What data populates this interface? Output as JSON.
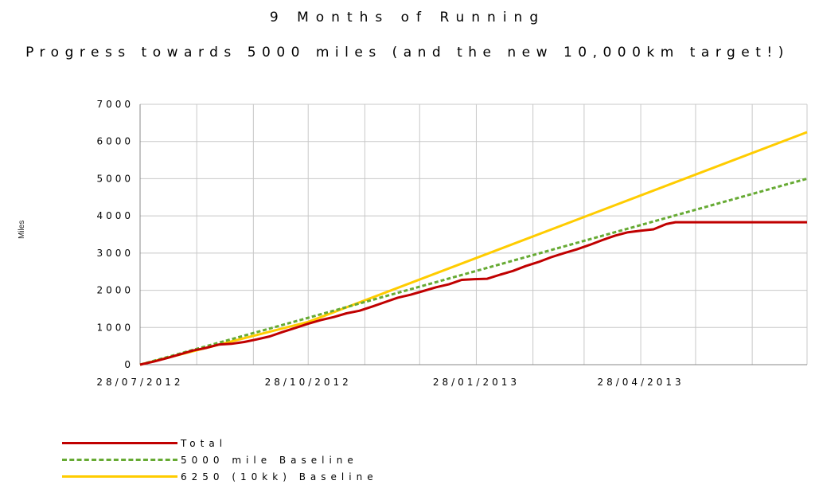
{
  "chart_data": {
    "type": "line",
    "title": "9 Months of Running",
    "subtitle": "Progress towards 5000 miles (and the new 10,000km target!)",
    "ylabel": "Miles",
    "xlabel": "",
    "ylim": [
      0,
      7000
    ],
    "yticks": [
      0,
      1000,
      2000,
      3000,
      4000,
      5000,
      6000,
      7000
    ],
    "xlim": [
      "2012-07-28",
      "2013-07-28"
    ],
    "xticks": [
      "28/07/2012",
      "28/10/2012",
      "28/01/2013",
      "28/04/2013"
    ],
    "grid": true,
    "legend_position": "bottom-left",
    "series": [
      {
        "name": "Total",
        "color": "#c00000",
        "style": "solid",
        "points": [
          [
            "2012-07-28",
            0
          ],
          [
            "2012-08-05",
            90
          ],
          [
            "2012-08-12",
            180
          ],
          [
            "2012-08-19",
            280
          ],
          [
            "2012-08-26",
            380
          ],
          [
            "2012-09-02",
            450
          ],
          [
            "2012-09-09",
            540
          ],
          [
            "2012-09-16",
            560
          ],
          [
            "2012-09-23",
            610
          ],
          [
            "2012-09-30",
            680
          ],
          [
            "2012-10-07",
            760
          ],
          [
            "2012-10-14",
            880
          ],
          [
            "2012-10-21",
            990
          ],
          [
            "2012-10-28",
            1100
          ],
          [
            "2012-11-04",
            1200
          ],
          [
            "2012-11-11",
            1280
          ],
          [
            "2012-11-18",
            1380
          ],
          [
            "2012-11-25",
            1450
          ],
          [
            "2012-12-02",
            1560
          ],
          [
            "2012-12-09",
            1680
          ],
          [
            "2012-12-16",
            1800
          ],
          [
            "2012-12-23",
            1880
          ],
          [
            "2012-12-30",
            1980
          ],
          [
            "2013-01-06",
            2080
          ],
          [
            "2013-01-13",
            2160
          ],
          [
            "2013-01-20",
            2280
          ],
          [
            "2013-01-27",
            2300
          ],
          [
            "2013-02-03",
            2310
          ],
          [
            "2013-02-10",
            2420
          ],
          [
            "2013-02-17",
            2520
          ],
          [
            "2013-02-24",
            2650
          ],
          [
            "2013-03-03",
            2760
          ],
          [
            "2013-03-10",
            2890
          ],
          [
            "2013-03-17",
            3000
          ],
          [
            "2013-03-24",
            3100
          ],
          [
            "2013-03-31",
            3220
          ],
          [
            "2013-04-07",
            3350
          ],
          [
            "2013-04-14",
            3470
          ],
          [
            "2013-04-21",
            3560
          ],
          [
            "2013-04-28",
            3600
          ],
          [
            "2013-05-05",
            3640
          ],
          [
            "2013-05-12",
            3780
          ],
          [
            "2013-05-17",
            3830
          ],
          [
            "2013-07-28",
            3830
          ]
        ]
      },
      {
        "name": "5000 mile Baseline",
        "color": "#66aa33",
        "style": "dashed",
        "points": [
          [
            "2012-07-28",
            0
          ],
          [
            "2013-07-28",
            5000
          ]
        ]
      },
      {
        "name": "6250 (10kk) Baseline",
        "color": "#ffcc00",
        "style": "solid",
        "points": [
          [
            "2012-07-28",
            0
          ],
          [
            "2012-10-28",
            1150
          ],
          [
            "2013-07-28",
            6250
          ]
        ]
      }
    ]
  }
}
